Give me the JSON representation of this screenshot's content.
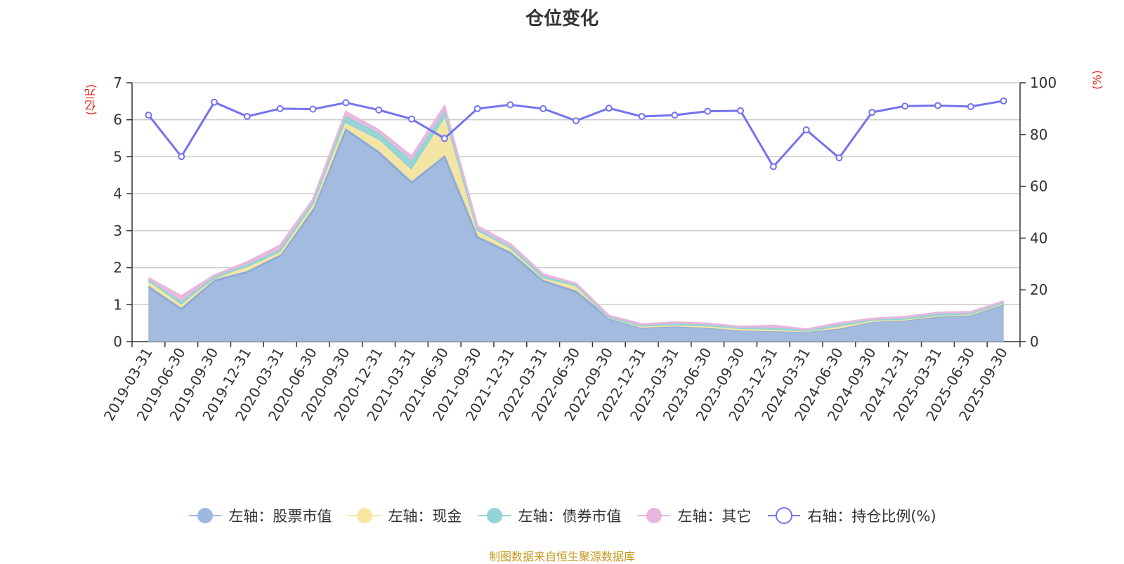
{
  "chart_data": {
    "type": "area",
    "title": "仓位变化",
    "left_axis_unit": "(亿元)",
    "right_axis_unit": "(%)",
    "left_ylim": [
      0,
      7
    ],
    "left_ticks": [
      0,
      1,
      2,
      3,
      4,
      5,
      6,
      7
    ],
    "right_ylim": [
      0,
      100
    ],
    "right_ticks": [
      0,
      20,
      40,
      60,
      80,
      100
    ],
    "categories": [
      "2019-03-31",
      "2019-06-30",
      "2019-09-30",
      "2019-12-31",
      "2020-03-31",
      "2020-06-30",
      "2020-09-30",
      "2020-12-31",
      "2021-03-31",
      "2021-06-30",
      "2021-09-30",
      "2021-12-31",
      "2022-03-31",
      "2022-06-30",
      "2022-09-30",
      "2022-12-31",
      "2023-03-31",
      "2023-06-30",
      "2023-09-30",
      "2023-12-31",
      "2024-03-31",
      "2024-06-30",
      "2024-09-30",
      "2024-12-31",
      "2025-03-31",
      "2025-06-30",
      "2025-09-30"
    ],
    "stacked_series": [
      {
        "name": "左轴：股票市值",
        "color": "#9db8e1",
        "values": [
          1.48,
          0.88,
          1.65,
          1.88,
          2.32,
          3.55,
          5.73,
          5.12,
          4.3,
          5.0,
          2.82,
          2.4,
          1.64,
          1.35,
          0.62,
          0.38,
          0.42,
          0.38,
          0.32,
          0.29,
          0.28,
          0.35,
          0.55,
          0.58,
          0.68,
          0.72,
          1.0
        ]
      },
      {
        "name": "左轴：现金",
        "color": "#f8e6a0",
        "values": [
          0.12,
          0.08,
          0.06,
          0.1,
          0.06,
          0.1,
          0.14,
          0.3,
          0.3,
          0.98,
          0.14,
          0.1,
          0.07,
          0.15,
          0.03,
          0.02,
          0.02,
          0.02,
          0.01,
          0.02,
          0.01,
          0.03,
          0.01,
          0.02,
          0.02,
          0.02,
          0.03
        ]
      },
      {
        "name": "左轴：债券市值",
        "color": "#93d4d4",
        "values": [
          0.05,
          0.1,
          0.02,
          0.08,
          0.08,
          0.09,
          0.2,
          0.2,
          0.26,
          0.2,
          0.06,
          0.05,
          0.03,
          0.02,
          0.01,
          0.03,
          0.03,
          0.04,
          0.04,
          0.04,
          0.01,
          0.05,
          0.03,
          0.02,
          0.02,
          0.02,
          0.02
        ]
      },
      {
        "name": "左轴：其它",
        "color": "#e8b6dc",
        "values": [
          0.07,
          0.17,
          0.06,
          0.09,
          0.14,
          0.1,
          0.14,
          0.1,
          0.15,
          0.18,
          0.1,
          0.09,
          0.08,
          0.05,
          0.04,
          0.04,
          0.05,
          0.05,
          0.03,
          0.08,
          0.03,
          0.07,
          0.03,
          0.05,
          0.06,
          0.04,
          0.04
        ]
      }
    ],
    "line_series": {
      "name": "右轴：持仓比例(%)",
      "color": "#7373f0",
      "values": [
        87.5,
        71.5,
        92.5,
        87.0,
        90.0,
        89.8,
        92.3,
        89.5,
        86.0,
        78.5,
        90.0,
        91.5,
        90.0,
        85.3,
        90.2,
        87.0,
        87.5,
        89.0,
        89.2,
        67.6,
        81.8,
        71.0,
        88.6,
        91.0,
        91.2,
        90.8,
        93.0
      ]
    },
    "source_note": "制图数据来自恒生聚源数据库"
  }
}
